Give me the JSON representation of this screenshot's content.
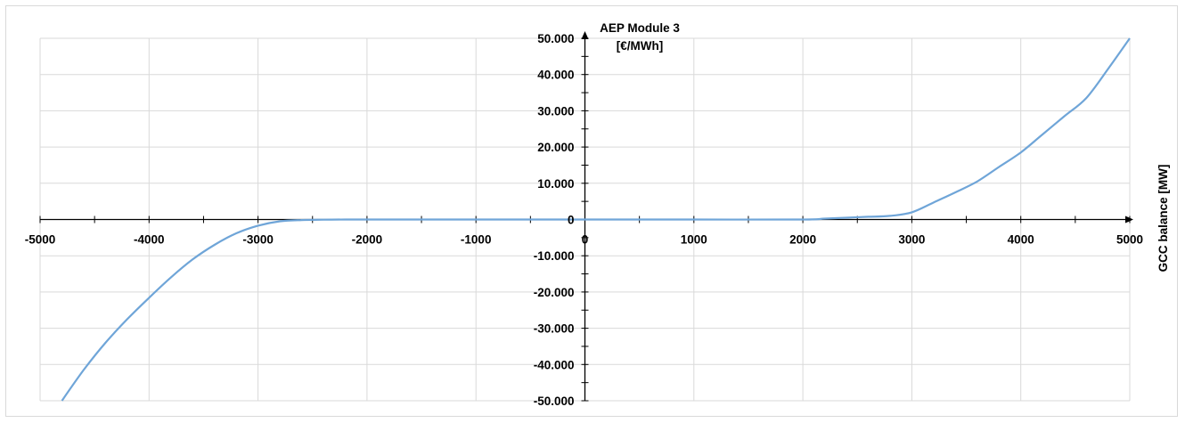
{
  "chart_data": {
    "type": "line",
    "title": "",
    "ylabel_lines": [
      "AEP Module 3",
      "[€/MWh]"
    ],
    "xlabel": "GCC balance [MW]",
    "xlim": [
      -5000,
      5000
    ],
    "ylim": [
      -50000,
      50000
    ],
    "x_ticks": [
      -5000,
      -4000,
      -3000,
      -2000,
      -1000,
      0,
      1000,
      2000,
      3000,
      4000,
      5000
    ],
    "x_tick_labels": [
      "-5000",
      "-4000",
      "-3000",
      "-2000",
      "-1000",
      "0",
      "1000",
      "2000",
      "3000",
      "4000",
      "5000"
    ],
    "y_ticks": [
      50000,
      40000,
      30000,
      20000,
      10000,
      0,
      -10000,
      -20000,
      -30000,
      -40000,
      -50000
    ],
    "y_tick_labels": [
      "50.000",
      "40.000",
      "30.000",
      "20.000",
      "10.000",
      "0",
      "-10.000",
      "-20.000",
      "-30.000",
      "-40.000",
      "-50.000"
    ],
    "grid": true,
    "line_color": "#6fa5d8",
    "series": [
      {
        "x": [
          -4800,
          -4600,
          -4400,
          -4200,
          -4000,
          -3800,
          -3600,
          -3400,
          -3200,
          -3000,
          -2800,
          -2600,
          -2400,
          -2200,
          -2100,
          -2000,
          -1000,
          0,
          1000,
          2000,
          2200,
          2400,
          2600,
          2800,
          3000,
          3200,
          3400,
          3600,
          3800,
          4000,
          4200,
          4400,
          4600,
          4800,
          5000
        ],
        "values": [
          -50000,
          -41500,
          -34000,
          -27500,
          -21600,
          -16000,
          -11000,
          -7000,
          -3800,
          -1700,
          -500,
          -150,
          -40,
          0,
          0,
          0,
          0,
          0,
          0,
          0,
          250,
          500,
          750,
          1000,
          2000,
          4700,
          7500,
          10500,
          14500,
          18500,
          23500,
          28500,
          33500,
          41500,
          50000
        ]
      }
    ]
  }
}
